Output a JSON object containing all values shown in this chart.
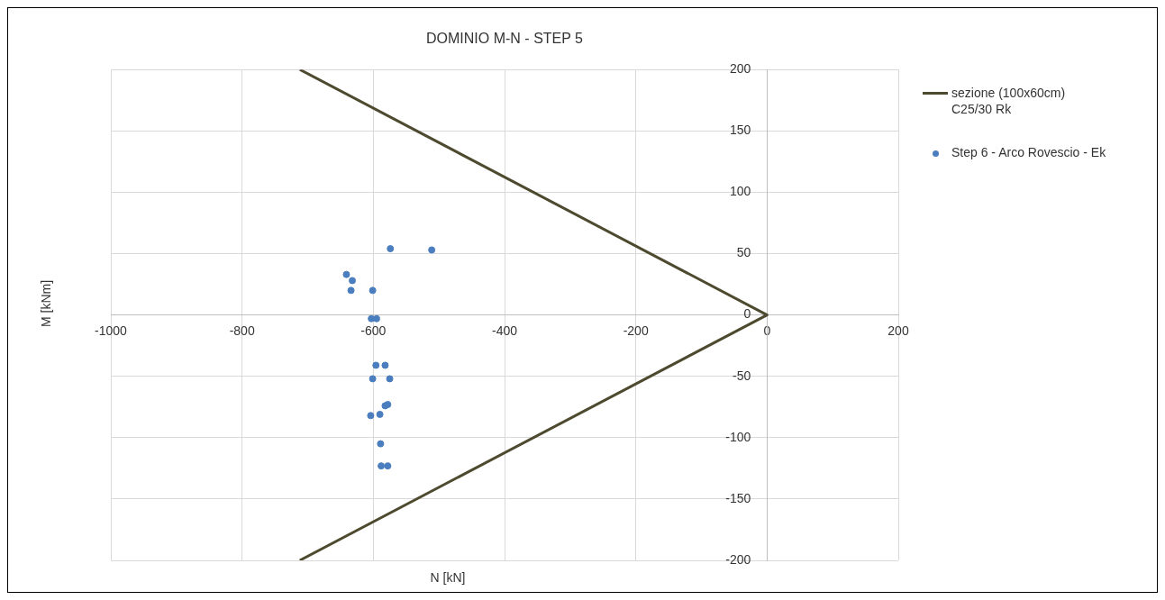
{
  "chart_data": {
    "type": "scatter",
    "title": "DOMINIO M-N - STEP 5",
    "xlabel": "N [kN]",
    "ylabel": "M [kNm]",
    "xlim": [
      -1000,
      200
    ],
    "xticks": [
      -1000,
      -800,
      -600,
      -400,
      -200,
      0,
      200
    ],
    "ylim": [
      -200,
      200
    ],
    "yticks": [
      -200,
      -150,
      -100,
      -50,
      0,
      50,
      100,
      150,
      200
    ],
    "grid": true,
    "legend": "right",
    "marker": "circle",
    "series": [
      {
        "name": "sezione (100x60cm) C25/30 Rk",
        "type": "line",
        "color": "#4d4a2f",
        "marker": "none",
        "x": [
          -712,
          0,
          -712
        ],
        "values": [
          200,
          0,
          -200
        ]
      },
      {
        "name": "Step 6 - Arco Rovescio - Ek",
        "type": "scatter",
        "color": "#4a7ebf",
        "x": [
          -574,
          -511,
          -641,
          -632,
          -634,
          -601,
          -603,
          -595,
          -596,
          -582,
          -601,
          -575,
          -582,
          -578,
          -604,
          -590,
          -589,
          -588,
          -578
        ],
        "values": [
          54,
          53,
          33,
          28,
          20,
          20,
          -3,
          -3,
          -41,
          -41,
          -52,
          -52,
          -74,
          -73,
          -82,
          -81,
          -105,
          -123,
          -123
        ]
      }
    ]
  }
}
